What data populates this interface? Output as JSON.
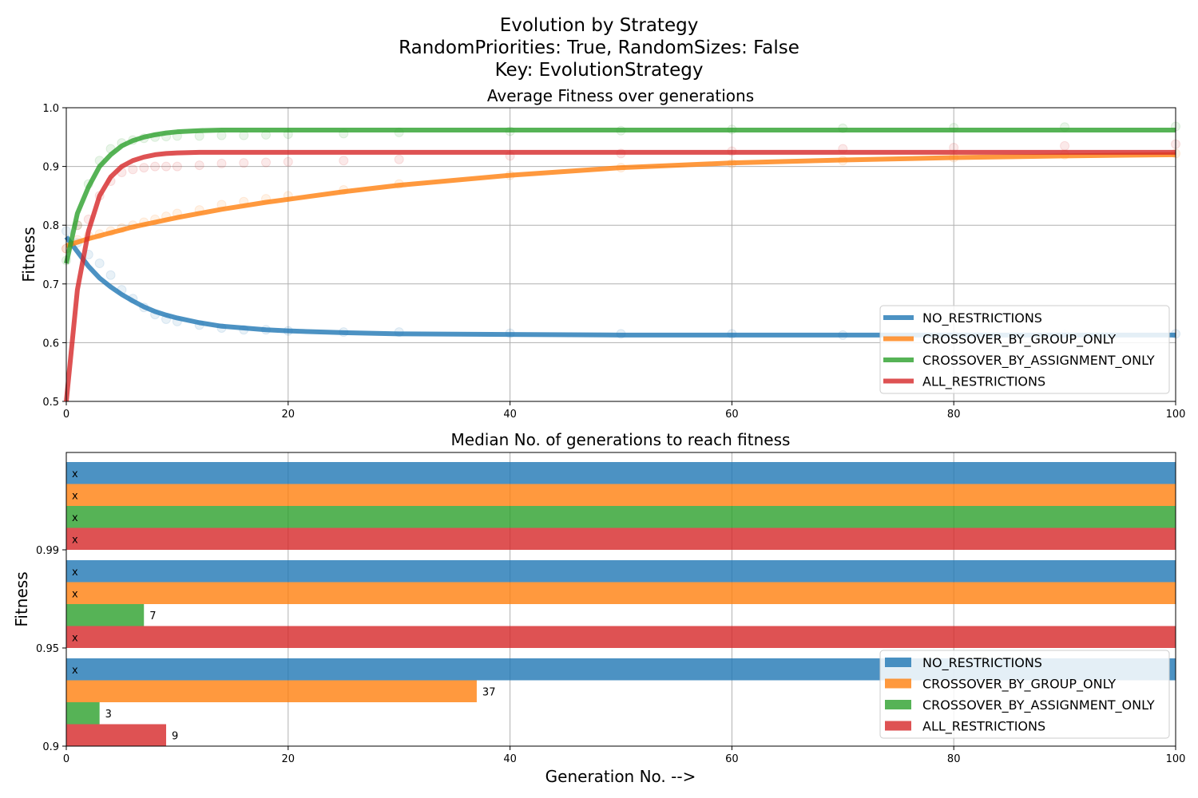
{
  "figure": {
    "suptitle_lines": [
      "Evolution by Strategy",
      "RandomPriorities: True, RandomSizes: False",
      "Key: EvolutionStrategy"
    ]
  },
  "colors": {
    "NO_RESTRICTIONS": "#1f77b4",
    "CROSSOVER_BY_GROUP_ONLY": "#ff7f0e",
    "CROSSOVER_BY_ASSIGNMENT_ONLY": "#2ca02c",
    "ALL_RESTRICTIONS": "#d62728",
    "grid": "#b0b0b0"
  },
  "chart_data": [
    {
      "type": "line",
      "title": "Average Fitness over generations",
      "xlabel": "",
      "ylabel": "Fitness",
      "xlim": [
        0,
        100
      ],
      "ylim": [
        0.5,
        1.0
      ],
      "xticks": [
        "0",
        "20",
        "40",
        "60",
        "80",
        "100"
      ],
      "yticks": [
        "0.5",
        "0.6",
        "0.7",
        "0.8",
        "0.9",
        "1.0"
      ],
      "grid": true,
      "legend_position": "lower right",
      "series": [
        {
          "name": "NO_RESTRICTIONS",
          "x": [
            0,
            1,
            2,
            3,
            4,
            5,
            6,
            7,
            8,
            9,
            10,
            12,
            14,
            16,
            18,
            20,
            25,
            30,
            40,
            50,
            60,
            70,
            80,
            90,
            100
          ],
          "values": [
            0.78,
            0.755,
            0.73,
            0.71,
            0.695,
            0.682,
            0.671,
            0.661,
            0.653,
            0.647,
            0.642,
            0.634,
            0.628,
            0.625,
            0.622,
            0.62,
            0.617,
            0.615,
            0.614,
            0.613,
            0.613,
            0.613,
            0.613,
            0.613,
            0.613
          ],
          "markers": [
            0.79,
            0.77,
            0.75,
            0.735,
            0.715,
            0.69,
            0.675,
            0.66,
            0.648,
            0.64,
            0.636,
            0.63,
            0.625,
            0.622,
            0.622,
            0.62,
            0.618,
            0.618,
            0.616,
            0.615,
            0.615,
            0.613,
            0.613,
            0.614,
            0.615
          ]
        },
        {
          "name": "CROSSOVER_BY_GROUP_ONLY",
          "x": [
            0,
            1,
            2,
            3,
            4,
            5,
            6,
            7,
            8,
            9,
            10,
            12,
            14,
            16,
            18,
            20,
            25,
            30,
            40,
            50,
            60,
            70,
            80,
            90,
            100
          ],
          "values": [
            0.765,
            0.771,
            0.777,
            0.782,
            0.787,
            0.792,
            0.797,
            0.801,
            0.805,
            0.809,
            0.813,
            0.82,
            0.827,
            0.833,
            0.839,
            0.844,
            0.857,
            0.868,
            0.885,
            0.898,
            0.906,
            0.911,
            0.915,
            0.918,
            0.92
          ],
          "markers": [
            0.76,
            0.775,
            0.782,
            0.785,
            0.79,
            0.795,
            0.8,
            0.805,
            0.81,
            0.815,
            0.82,
            0.826,
            0.835,
            0.84,
            0.845,
            0.85,
            0.86,
            0.87,
            0.885,
            0.898,
            0.905,
            0.91,
            0.915,
            0.92,
            0.922
          ]
        },
        {
          "name": "CROSSOVER_BY_ASSIGNMENT_ONLY",
          "x": [
            0,
            1,
            2,
            3,
            4,
            5,
            6,
            7,
            8,
            9,
            10,
            12,
            14,
            16,
            18,
            20,
            25,
            30,
            40,
            50,
            60,
            70,
            80,
            90,
            100
          ],
          "values": [
            0.735,
            0.82,
            0.865,
            0.9,
            0.92,
            0.935,
            0.944,
            0.95,
            0.954,
            0.957,
            0.959,
            0.961,
            0.962,
            0.962,
            0.962,
            0.962,
            0.962,
            0.962,
            0.962,
            0.962,
            0.962,
            0.962,
            0.962,
            0.962,
            0.962
          ],
          "markers": [
            0.74,
            0.8,
            0.87,
            0.91,
            0.93,
            0.94,
            0.945,
            0.948,
            0.95,
            0.951,
            0.952,
            0.952,
            0.953,
            0.953,
            0.954,
            0.955,
            0.956,
            0.958,
            0.96,
            0.961,
            0.963,
            0.965,
            0.966,
            0.967,
            0.968
          ]
        },
        {
          "name": "ALL_RESTRICTIONS",
          "x": [
            0,
            1,
            2,
            3,
            4,
            5,
            6,
            7,
            8,
            9,
            10,
            12,
            14,
            16,
            18,
            20,
            25,
            30,
            40,
            50,
            60,
            70,
            80,
            90,
            100
          ],
          "values": [
            0.5,
            0.69,
            0.79,
            0.85,
            0.882,
            0.9,
            0.91,
            0.916,
            0.92,
            0.922,
            0.923,
            0.924,
            0.924,
            0.924,
            0.924,
            0.924,
            0.924,
            0.924,
            0.924,
            0.924,
            0.924,
            0.924,
            0.924,
            0.924,
            0.924
          ],
          "markers": [
            0.76,
            0.8,
            0.81,
            0.85,
            0.875,
            0.89,
            0.895,
            0.898,
            0.9,
            0.9,
            0.9,
            0.902,
            0.905,
            0.906,
            0.907,
            0.908,
            0.91,
            0.912,
            0.918,
            0.922,
            0.926,
            0.93,
            0.932,
            0.935,
            0.938
          ]
        }
      ]
    },
    {
      "type": "bar",
      "orientation": "horizontal",
      "title": "Median No. of generations to reach fitness",
      "xlabel": "Generation No. -->",
      "ylabel": "Fitness",
      "xlim": [
        0,
        100
      ],
      "xticks": [
        "0",
        "20",
        "40",
        "60",
        "80",
        "100"
      ],
      "categories": [
        "0.9",
        "0.95",
        "0.99"
      ],
      "grid": true,
      "legend_position": "lower right",
      "series": [
        {
          "name": "NO_RESTRICTIONS",
          "values": [
            null,
            null,
            null
          ],
          "labels": [
            "x",
            "x",
            "x"
          ]
        },
        {
          "name": "CROSSOVER_BY_GROUP_ONLY",
          "values": [
            37,
            null,
            null
          ],
          "labels": [
            "37",
            "x",
            "x"
          ]
        },
        {
          "name": "CROSSOVER_BY_ASSIGNMENT_ONLY",
          "values": [
            3,
            7,
            null
          ],
          "labels": [
            "3",
            "7",
            "x"
          ]
        },
        {
          "name": "ALL_RESTRICTIONS",
          "values": [
            9,
            null,
            null
          ],
          "labels": [
            "9",
            "x",
            "x"
          ]
        }
      ]
    }
  ]
}
